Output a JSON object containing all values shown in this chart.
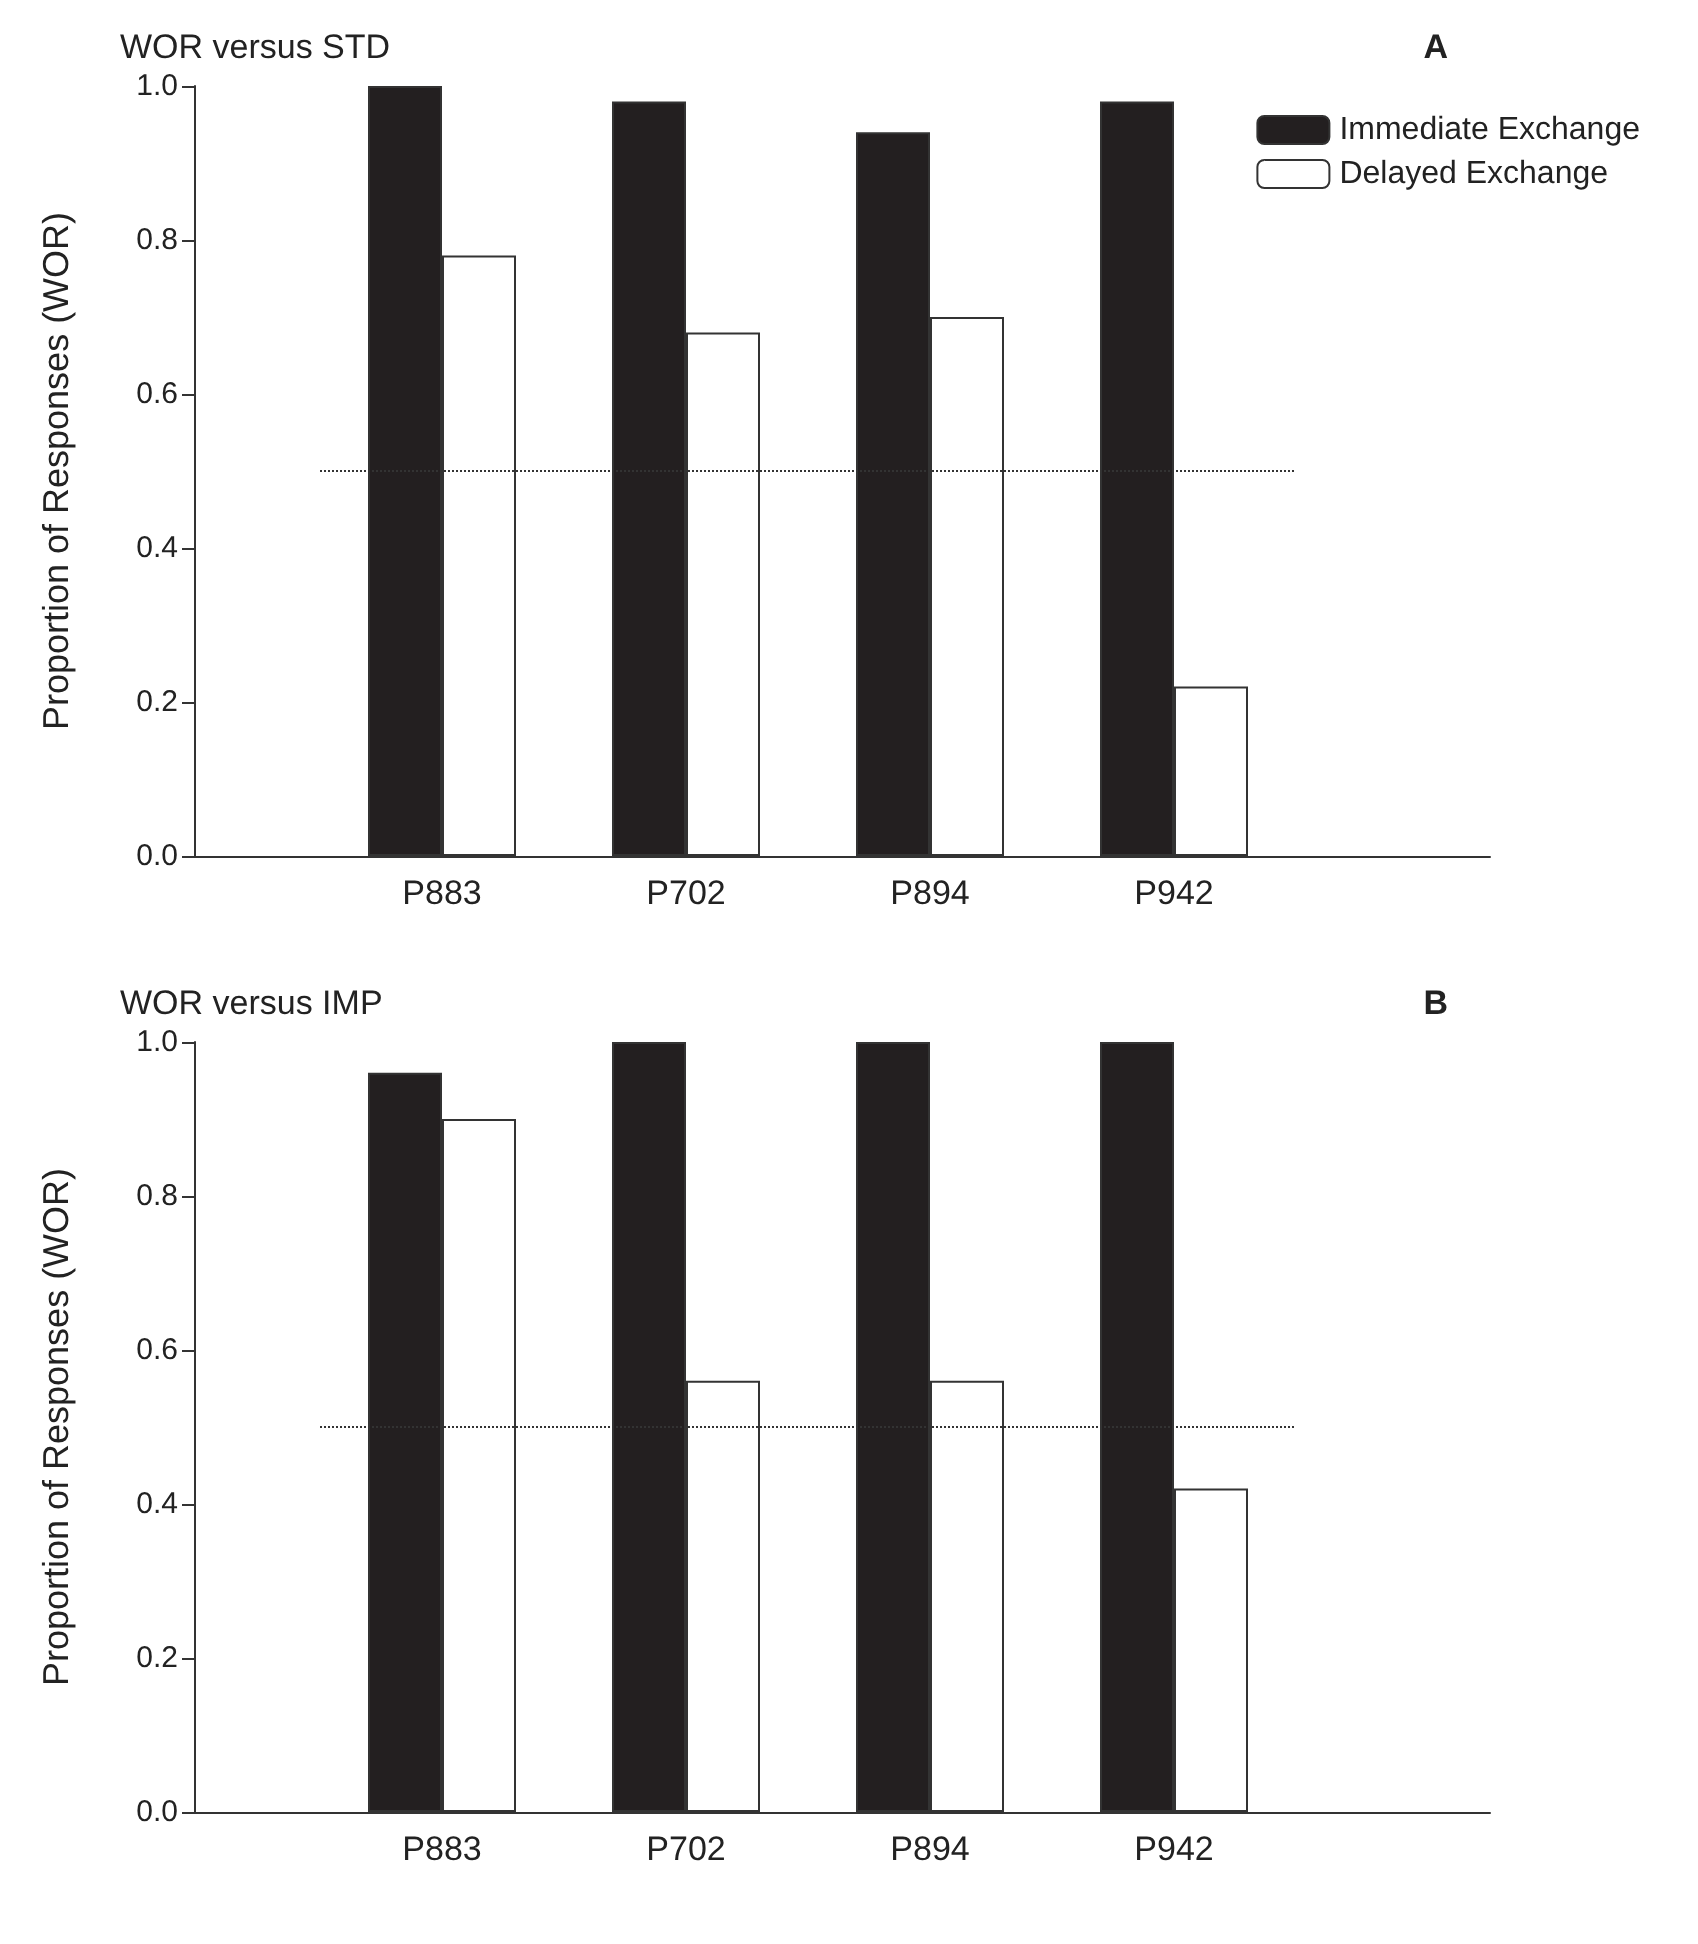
{
  "chart_data": [
    {
      "type": "bar",
      "title": "WOR versus STD",
      "ylabel": "Proportion of Responses (WOR)",
      "annotations": [
        "A"
      ],
      "categories": [
        "P883",
        "P702",
        "P894",
        "P942"
      ],
      "series": [
        {
          "name": "Immediate Exchange",
          "color": "#231f20",
          "values": [
            1.0,
            0.98,
            0.94,
            0.98
          ]
        },
        {
          "name": "Delayed Exchange",
          "color": "#ffffff",
          "values": [
            0.78,
            0.68,
            0.7,
            0.22
          ]
        }
      ],
      "ylim": [
        0,
        1
      ],
      "yticks": [
        {
          "value": 0,
          "label": "0.0"
        },
        {
          "value": 0.2,
          "label": "0.2"
        },
        {
          "value": 0.4,
          "label": "0.4"
        },
        {
          "value": 0.6,
          "label": "0.6"
        },
        {
          "value": 0.8,
          "label": "0.8"
        },
        {
          "value": 1,
          "label": "1.0"
        }
      ],
      "ref_lines": [
        {
          "axis": "y",
          "value": 0.5,
          "line_style": "dotted",
          "color": "#333333"
        }
      ],
      "legend": "top right"
    },
    {
      "type": "bar",
      "title": "WOR versus IMP",
      "ylabel": "Proportion of Responses (WOR)",
      "annotations": [
        "B"
      ],
      "categories": [
        "P883",
        "P702",
        "P894",
        "P942"
      ],
      "series": [
        {
          "color": "#231f20",
          "values": [
            0.96,
            1.0,
            1.0,
            1.0
          ]
        },
        {
          "color": "#ffffff",
          "values": [
            0.9,
            0.56,
            0.56,
            0.42
          ]
        }
      ],
      "ylim": [
        0,
        1
      ],
      "yticks": [
        {
          "value": 0,
          "label": "0.0"
        },
        {
          "value": 0.2,
          "label": "0.2"
        },
        {
          "value": 0.4,
          "label": "0.4"
        },
        {
          "value": 0.6,
          "label": "0.6"
        },
        {
          "value": 0.8,
          "label": "0.8"
        },
        {
          "value": 1,
          "label": "1.0"
        }
      ],
      "ref_lines": [
        {
          "axis": "y",
          "value": 0.5,
          "line_style": "dotted",
          "color": "#333333"
        }
      ],
      "legend": false
    }
  ]
}
